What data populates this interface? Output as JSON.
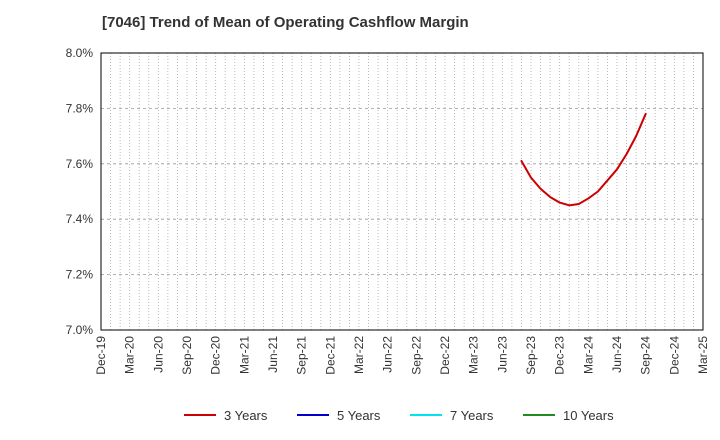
{
  "chart_data": {
    "type": "line",
    "title": "[7046]  Trend of Mean of Operating Cashflow Margin",
    "xlabel": "",
    "ylabel": "",
    "x_ticks": [
      "Dec-19",
      "Mar-20",
      "Jun-20",
      "Sep-20",
      "Dec-20",
      "Mar-21",
      "Jun-21",
      "Sep-21",
      "Dec-21",
      "Mar-22",
      "Jun-22",
      "Sep-22",
      "Dec-22",
      "Mar-23",
      "Jun-23",
      "Sep-23",
      "Dec-23",
      "Mar-24",
      "Jun-24",
      "Sep-24",
      "Dec-24",
      "Mar-25"
    ],
    "y_ticks": [
      "7.0%",
      "7.2%",
      "7.4%",
      "7.6%",
      "7.8%",
      "8.0%"
    ],
    "ylim": [
      7.0,
      8.0
    ],
    "grid": true,
    "legend_position": "bottom",
    "series": [
      {
        "name": "3 Years",
        "color": "#cc0000",
        "x": [
          "Aug-23",
          "Sep-23",
          "Oct-23",
          "Nov-23",
          "Dec-23",
          "Jan-24",
          "Feb-24",
          "Mar-24",
          "Apr-24",
          "May-24",
          "Jun-24",
          "Jul-24",
          "Aug-24",
          "Sep-24"
        ],
        "values": [
          7.61,
          7.55,
          7.51,
          7.48,
          7.46,
          7.45,
          7.455,
          7.475,
          7.5,
          7.54,
          7.58,
          7.635,
          7.7,
          7.78
        ]
      },
      {
        "name": "5 Years",
        "color": "#0000cc",
        "x": [],
        "values": []
      },
      {
        "name": "7 Years",
        "color": "#00e5ee",
        "x": [],
        "values": []
      },
      {
        "name": "10 Years",
        "color": "#228b22",
        "x": [],
        "values": []
      }
    ]
  }
}
